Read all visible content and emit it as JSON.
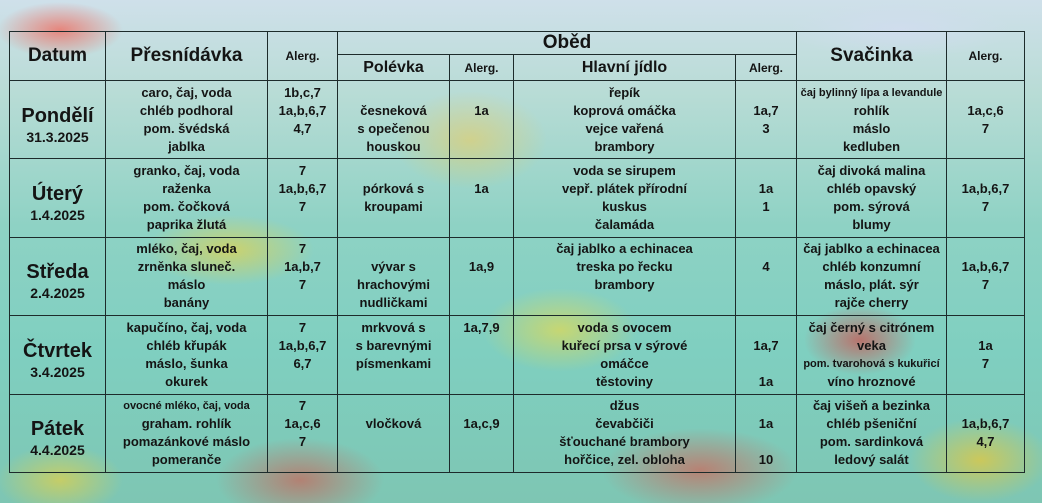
{
  "header": {
    "datum": "Datum",
    "presnidavka": "Přesnídávka",
    "alerg": "Alerg.",
    "obed": "Oběd",
    "polevka": "Polévka",
    "hlavni": "Hlavní jídlo",
    "svacinka": "Svačinka"
  },
  "days": [
    {
      "name": "Pondělí",
      "date": "31.3.2025",
      "snack": [
        "caro, čaj, voda",
        "chléb podhoral",
        "pom. švédská",
        "jablka"
      ],
      "snack_alerg": [
        "1b,c,7",
        "1a,b,6,7",
        "4,7",
        ""
      ],
      "soup": [
        "",
        "česneková",
        "s opečenou",
        "houskou"
      ],
      "soup_alerg": [
        "",
        "1a",
        "",
        ""
      ],
      "main": [
        "řepík",
        "koprová omáčka",
        "vejce vařená",
        "brambory"
      ],
      "main_alerg": [
        "",
        "1a,7",
        "3",
        ""
      ],
      "svacinka": [
        "čaj bylinný lípa a levandule",
        "rohlík",
        "máslo",
        "kedluben"
      ],
      "svacinka_alerg": [
        "",
        "1a,c,6",
        "7",
        ""
      ]
    },
    {
      "name": "Úterý",
      "date": "1.4.2025",
      "snack": [
        "granko, čaj, voda",
        "raženka",
        "pom. čočková",
        "paprika žlutá"
      ],
      "snack_alerg": [
        "7",
        "1a,b,6,7",
        "7",
        ""
      ],
      "soup": [
        "",
        "pórková s",
        "kroupami",
        ""
      ],
      "soup_alerg": [
        "",
        "1a",
        "",
        ""
      ],
      "main": [
        "voda se sirupem",
        "vepř. plátek přírodní",
        "kuskus",
        "čalamáda"
      ],
      "main_alerg": [
        "",
        "1a",
        "1",
        ""
      ],
      "svacinka": [
        "čaj divoká malina",
        "chléb opavský",
        "pom. sýrová",
        "blumy"
      ],
      "svacinka_alerg": [
        "",
        "1a,b,6,7",
        "7",
        ""
      ]
    },
    {
      "name": "Středa",
      "date": "2.4.2025",
      "snack": [
        "mléko, čaj, voda",
        "zrněnka sluneč.",
        "máslo",
        "banány"
      ],
      "snack_alerg": [
        "7",
        "1a,b,7",
        "7",
        ""
      ],
      "soup": [
        "",
        "vývar s",
        "hrachovými",
        "nudličkami"
      ],
      "soup_alerg": [
        "",
        "1a,9",
        "",
        ""
      ],
      "main": [
        "čaj jablko a echinacea",
        "treska po řecku",
        "brambory",
        ""
      ],
      "main_alerg": [
        "",
        "4",
        "",
        ""
      ],
      "svacinka": [
        "čaj jablko a echinacea",
        "chléb konzumní",
        "máslo, plát. sýr",
        "rajče cherry"
      ],
      "svacinka_alerg": [
        "",
        "1a,b,6,7",
        "7",
        ""
      ]
    },
    {
      "name": "Čtvrtek",
      "date": "3.4.2025",
      "snack": [
        "kapučíno, čaj, voda",
        "chléb křupák",
        "máslo, šunka",
        "okurek"
      ],
      "snack_alerg": [
        "7",
        "1a,b,6,7",
        "6,7",
        ""
      ],
      "soup": [
        "mrkvová s",
        "s barevnými",
        "písmenkami",
        ""
      ],
      "soup_alerg": [
        "1a,7,9",
        "",
        "",
        ""
      ],
      "main": [
        "voda s ovocem",
        "kuřecí prsa v sýrové",
        "omáčce",
        "těstoviny"
      ],
      "main_alerg": [
        "",
        "1a,7",
        "",
        "1a"
      ],
      "svacinka": [
        "čaj černý s citrónem",
        "veka",
        "pom. tvarohová s kukuřicí",
        "víno hroznové"
      ],
      "svacinka_alerg": [
        "",
        "1a",
        "7",
        ""
      ]
    },
    {
      "name": "Pátek",
      "date": "4.4.2025",
      "snack": [
        "ovocné mléko, čaj, voda",
        "graham. rohlík",
        "pomazánkové máslo",
        "pomeranče"
      ],
      "snack_alerg": [
        "7",
        "1a,c,6",
        "7",
        ""
      ],
      "soup": [
        "",
        "vločková",
        "",
        ""
      ],
      "soup_alerg": [
        "",
        "1a,c,9",
        "",
        ""
      ],
      "main": [
        "džus",
        "čevabčiči",
        "šťouchané brambory",
        "hořčice, zel. obloha"
      ],
      "main_alerg": [
        "",
        "1a",
        "",
        "10"
      ],
      "svacinka": [
        "čaj višeň a bezinka",
        "chléb pšeniční",
        "pom. sardinková",
        "ledový salát"
      ],
      "svacinka_alerg": [
        "",
        "1a,b,6,7",
        "4,7",
        ""
      ]
    }
  ],
  "colors": {
    "border": "#1d2b2b",
    "background": "#8ed2c4"
  }
}
